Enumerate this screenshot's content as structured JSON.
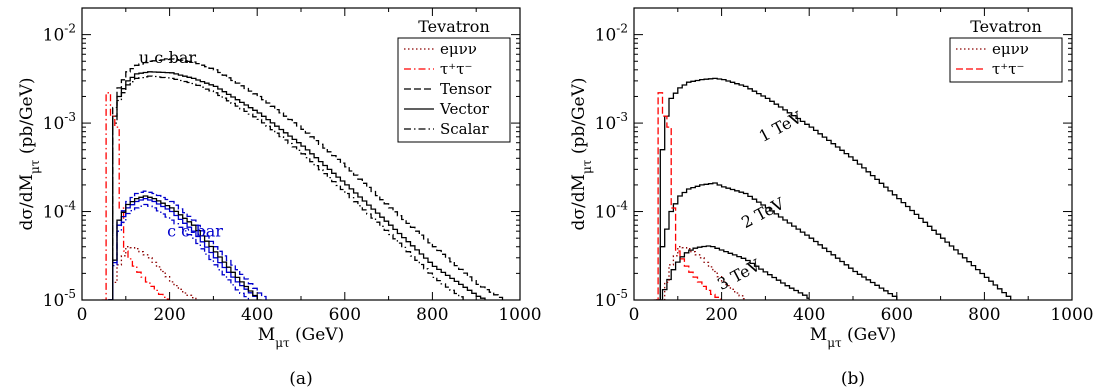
{
  "chart_data": [
    {
      "panel": "a",
      "type": "line",
      "caption": "(a)",
      "xlabel": "M_{μτ} (GeV)",
      "ylabel": "dσ/dM_{μτ} (pb/GeV)",
      "xlim": [
        0,
        1000
      ],
      "ylim": [
        1e-05,
        0.02
      ],
      "ylog": true,
      "grid": false,
      "x_ticks": [
        "0",
        "200",
        "400",
        "600",
        "800",
        "1000"
      ],
      "y_ticks": [
        {
          "base": "10",
          "exp": "-5",
          "value": 1e-05
        },
        {
          "base": "10",
          "exp": "-4",
          "value": 0.0001
        },
        {
          "base": "10",
          "exp": "-3",
          "value": 0.001
        },
        {
          "base": "10",
          "exp": "-2",
          "value": 0.01
        }
      ],
      "legend": {
        "title": "Tevatron",
        "placement": "top-right",
        "entries": [
          {
            "label": "eμνν",
            "style": "dotted",
            "color": "#8b0000"
          },
          {
            "label": "τ⁺τ⁻",
            "style": "dashdot",
            "color": "#ff0000"
          },
          {
            "label": "Tensor",
            "style": "dashed",
            "color": "#000000"
          },
          {
            "label": "Vector",
            "style": "solid",
            "color": "#000000"
          },
          {
            "label": "Scalar",
            "style": "dashdot",
            "color": "#000000"
          }
        ]
      },
      "annotations": [
        {
          "text": "u c-bar",
          "color": "#000000",
          "x": 195,
          "y": 0.0048
        },
        {
          "text": "c c-bar",
          "color": "#0000cc",
          "x": 258,
          "y": 5.2e-05
        }
      ],
      "series": [
        {
          "style": "dashed",
          "color": "#000000",
          "group": "u c-bar",
          "x": [
            60,
            70,
            80,
            100,
            120,
            150,
            200,
            250,
            300,
            400,
            500,
            600,
            700,
            800,
            900,
            960
          ],
          "y": [
            1e-05,
            0.0015,
            0.0025,
            0.0038,
            0.0045,
            0.005,
            0.0053,
            0.0049,
            0.004,
            0.002,
            0.00085,
            0.00032,
            0.00011,
            4e-05,
            1.5e-05,
            1e-05
          ]
        },
        {
          "style": "solid",
          "color": "#000000",
          "group": "u c-bar",
          "x": [
            60,
            70,
            80,
            100,
            120,
            150,
            200,
            250,
            300,
            400,
            500,
            600,
            700,
            800,
            900,
            920
          ],
          "y": [
            1e-05,
            0.0012,
            0.002,
            0.003,
            0.0036,
            0.0038,
            0.0037,
            0.0032,
            0.0026,
            0.0013,
            0.00055,
            0.0002,
            7e-05,
            2.4e-05,
            1.1e-05,
            1e-05
          ]
        },
        {
          "style": "dashdot",
          "color": "#000000",
          "group": "u c-bar",
          "x": [
            60,
            70,
            80,
            100,
            120,
            150,
            200,
            250,
            300,
            400,
            500,
            600,
            700,
            800,
            870
          ],
          "y": [
            1e-05,
            0.001,
            0.0018,
            0.0027,
            0.0032,
            0.0034,
            0.0032,
            0.0028,
            0.0022,
            0.0011,
            0.00045,
            0.00016,
            5.5e-05,
            1.8e-05,
            1e-05
          ]
        },
        {
          "style": "dotted",
          "color": "#8b0000",
          "group": "u c-bar",
          "x": [
            60,
            80,
            100,
            120,
            150,
            180,
            200,
            230,
            260
          ],
          "y": [
            1e-05,
            2.5e-05,
            4e-05,
            3.8e-05,
            3e-05,
            2.1e-05,
            1.6e-05,
            1.2e-05,
            1e-05
          ]
        },
        {
          "style": "dashdot",
          "color": "#ff0000",
          "group": "u c-bar",
          "x": [
            45,
            50,
            55,
            60,
            65,
            70,
            75,
            80,
            90,
            100,
            120,
            150,
            180,
            200
          ],
          "y": [
            1e-05,
            0.0007,
            0.0022,
            0.0018,
            0.0012,
            0.0015,
            0.0009,
            0.0003,
            4e-05,
            3.2e-05,
            2.2e-05,
            1.5e-05,
            1.1e-05,
            1e-05
          ]
        },
        {
          "style": "dashed",
          "color": "#0000cc",
          "group": "c c-bar",
          "x": [
            60,
            80,
            100,
            120,
            140,
            160,
            200,
            250,
            300,
            350,
            400,
            420
          ],
          "y": [
            1e-05,
            8e-05,
            0.00013,
            0.00016,
            0.00017,
            0.00016,
            0.00013,
            8e-05,
            4e-05,
            2.2e-05,
            1.2e-05,
            1e-05
          ]
        },
        {
          "style": "solid",
          "color": "#0000cc",
          "group": "c c-bar",
          "x": [
            60,
            80,
            100,
            120,
            140,
            160,
            200,
            250,
            300,
            350,
            400
          ],
          "y": [
            1e-05,
            7e-05,
            0.00011,
            0.00013,
            0.00014,
            0.00013,
            0.0001,
            6e-05,
            3e-05,
            1.6e-05,
            1e-05
          ]
        },
        {
          "style": "dashdot",
          "color": "#0000cc",
          "group": "c c-bar",
          "x": [
            60,
            80,
            100,
            120,
            140,
            160,
            200,
            250,
            300,
            350,
            380
          ],
          "y": [
            1e-05,
            6e-05,
            9.5e-05,
            0.00011,
            0.00012,
            0.00011,
            8e-05,
            5e-05,
            2.5e-05,
            1.3e-05,
            1e-05
          ]
        },
        {
          "style": "solid",
          "color": "#000000",
          "group": "c c-bar",
          "x": [
            60,
            80,
            100,
            120,
            140,
            160,
            200,
            250,
            300,
            350,
            400,
            410
          ],
          "y": [
            1e-05,
            8e-05,
            0.00012,
            0.00014,
            0.00015,
            0.00014,
            0.00011,
            7e-05,
            3.5e-05,
            1.8e-05,
            1e-05,
            1e-05
          ]
        }
      ]
    },
    {
      "panel": "b",
      "type": "line",
      "caption": "(b)",
      "xlabel": "M_{μτ} (GeV)",
      "ylabel": "dσ/dM_{μτ} (pb/GeV)",
      "xlim": [
        0,
        1000
      ],
      "ylim": [
        1e-05,
        0.02
      ],
      "ylog": true,
      "grid": false,
      "x_ticks": [
        "0",
        "200",
        "400",
        "600",
        "800",
        "1000"
      ],
      "y_ticks": [
        {
          "base": "10",
          "exp": "-5",
          "value": 1e-05
        },
        {
          "base": "10",
          "exp": "-4",
          "value": 0.0001
        },
        {
          "base": "10",
          "exp": "-3",
          "value": 0.001
        },
        {
          "base": "10",
          "exp": "-2",
          "value": 0.01
        }
      ],
      "legend": {
        "title": "Tevatron",
        "placement": "top-right",
        "entries": [
          {
            "label": "eμνν",
            "style": "dotted",
            "color": "#8b0000"
          },
          {
            "label": "τ⁺τ⁻",
            "style": "dashed",
            "color": "#ff0000"
          }
        ]
      },
      "annotations": [
        {
          "text": "1 TeV",
          "color": "#000000",
          "x": 340,
          "y": 0.0008
        },
        {
          "text": "2 TeV",
          "color": "#000000",
          "x": 300,
          "y": 8.5e-05
        },
        {
          "text": "3 TeV",
          "color": "#000000",
          "x": 245,
          "y": 1.7e-05
        }
      ],
      "series": [
        {
          "style": "solid",
          "color": "#000000",
          "name": "1 TeV",
          "x": [
            50,
            60,
            70,
            80,
            100,
            120,
            150,
            180,
            200,
            250,
            300,
            400,
            500,
            600,
            700,
            800,
            850,
            860
          ],
          "y": [
            1e-05,
            0.0005,
            0.0012,
            0.0019,
            0.0025,
            0.0029,
            0.0031,
            0.0032,
            0.0031,
            0.0026,
            0.0019,
            0.0009,
            0.00038,
            0.00014,
            5e-05,
            1.8e-05,
            1.1e-05,
            1e-05
          ]
        },
        {
          "style": "solid",
          "color": "#000000",
          "name": "2 TeV",
          "x": [
            50,
            60,
            80,
            100,
            120,
            150,
            180,
            200,
            250,
            300,
            400,
            500,
            590,
            600
          ],
          "y": [
            1e-05,
            4e-05,
            0.0001,
            0.00015,
            0.00018,
            0.0002,
            0.00021,
            0.00019,
            0.00016,
            0.00011,
            5e-05,
            2.1e-05,
            1.1e-05,
            1e-05
          ]
        },
        {
          "style": "solid",
          "color": "#000000",
          "name": "3 TeV",
          "x": [
            55,
            70,
            90,
            110,
            130,
            150,
            170,
            200,
            250,
            300,
            350,
            390,
            400
          ],
          "y": [
            1e-05,
            1.5e-05,
            2.5e-05,
            3.3e-05,
            3.8e-05,
            4e-05,
            4.1e-05,
            3.6e-05,
            2.9e-05,
            2e-05,
            1.4e-05,
            1.1e-05,
            1e-05
          ]
        },
        {
          "style": "dotted",
          "color": "#8b0000",
          "name": "",
          "x": [
            60,
            80,
            100,
            120,
            150,
            180,
            200,
            230,
            255
          ],
          "y": [
            1e-05,
            2.5e-05,
            4e-05,
            3.8e-05,
            3e-05,
            2.1e-05,
            1.6e-05,
            1.2e-05,
            1e-05
          ]
        },
        {
          "style": "dashed",
          "color": "#ff0000",
          "name": "",
          "x": [
            45,
            50,
            55,
            60,
            65,
            70,
            75,
            80,
            90,
            100,
            120,
            150,
            180,
            200
          ],
          "y": [
            1e-05,
            0.0007,
            0.0022,
            0.0018,
            0.0012,
            0.0015,
            0.0009,
            0.0003,
            4e-05,
            3.2e-05,
            2.2e-05,
            1.5e-05,
            1.1e-05,
            1e-05
          ]
        }
      ]
    }
  ]
}
